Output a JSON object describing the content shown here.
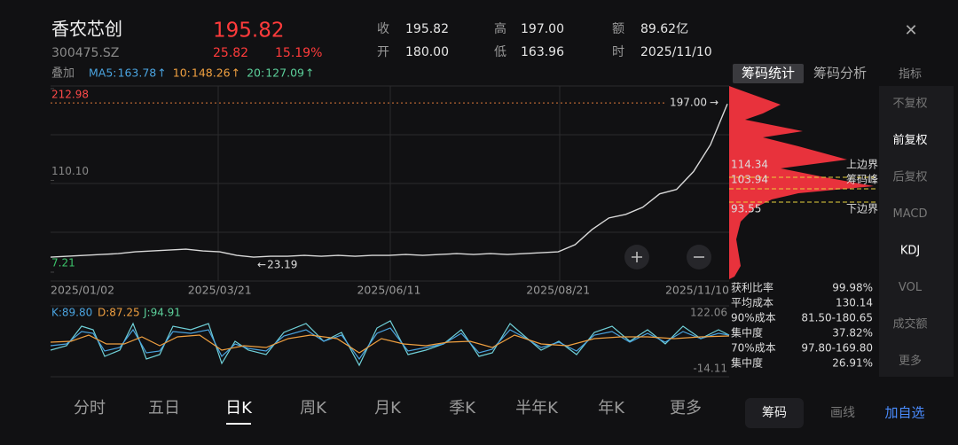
{
  "header": {
    "name": "香农芯创",
    "code": "300475.SZ",
    "price": "195.82",
    "change": "25.82",
    "change_pct": "15.19%",
    "stats": [
      {
        "label": "收",
        "value": "195.82"
      },
      {
        "label": "开",
        "value": "180.00"
      },
      {
        "label": "高",
        "value": "197.00"
      },
      {
        "label": "低",
        "value": "163.96"
      },
      {
        "label": "额",
        "value": "89.62亿"
      },
      {
        "label": "时",
        "value": "2025/11/10"
      }
    ],
    "close": "✕"
  },
  "overlay": {
    "label": "叠加",
    "ma": [
      {
        "name": "MA5:",
        "value": "163.78",
        "trend": "↑",
        "color": "#4aa3df"
      },
      {
        "name": "10:",
        "value": "148.26",
        "trend": "↑",
        "color": "#f0a040"
      },
      {
        "name": "20:",
        "value": "127.09",
        "trend": "↑",
        "color": "#5ccf9a"
      }
    ]
  },
  "chart_data": {
    "type": "line",
    "color": "#d9d9d9",
    "categories": [
      "2025/01/02",
      null,
      null,
      null,
      null,
      null,
      null,
      null,
      null,
      null,
      "2025/03/21",
      null,
      null,
      null,
      null,
      null,
      null,
      null,
      null,
      null,
      "2025/06/11",
      null,
      null,
      null,
      null,
      null,
      null,
      null,
      null,
      null,
      "2025/08/21",
      null,
      null,
      null,
      null,
      null,
      null,
      null,
      null,
      null,
      "2025/11/10"
    ],
    "values": [
      24,
      25,
      26,
      27,
      28,
      30,
      31,
      32,
      33,
      31,
      30,
      26,
      24,
      25,
      25,
      26,
      25,
      26,
      25,
      26,
      26,
      27,
      26,
      27,
      28,
      27,
      28,
      27,
      28,
      29,
      30,
      38,
      55,
      68,
      72,
      80,
      95,
      100,
      120,
      150,
      195.82
    ],
    "ylim": [
      7.21,
      212.98
    ],
    "yticks": [
      212.98,
      {
        "value": 110.1,
        "label": "110.10"
      },
      7.21
    ],
    "high_marker": {
      "value": 197,
      "label": "197.00",
      "arrow": "→"
    },
    "low_marker": {
      "value": 23.19,
      "arrow": "←"
    }
  },
  "chips": {
    "tabs": [
      "筹码统计",
      "筹码分析"
    ],
    "levels": [
      {
        "value": "114.34",
        "label": "上边界"
      },
      {
        "value": "103.94",
        "label": "筹码峰"
      },
      {
        "value": "93.55",
        "label": "下边界"
      }
    ],
    "stats": [
      {
        "label": "获利比率",
        "value": "99.98%"
      },
      {
        "label": "平均成本",
        "value": "130.14"
      },
      {
        "label": "90%成本",
        "value": "81.50-180.65"
      },
      {
        "label": "集中度",
        "value": "37.82%"
      },
      {
        "label": "70%成本",
        "value": "97.80-169.80"
      },
      {
        "label": "集中度",
        "value": "26.91%"
      }
    ]
  },
  "indicators": {
    "title": "指标",
    "items": [
      "不复权",
      "前复权",
      "后复权",
      "MACD",
      "KDJ",
      "VOL",
      "成交额",
      "更多"
    ],
    "active": [
      "前复权",
      "KDJ"
    ]
  },
  "kdj": {
    "k": "K:89.80",
    "d": "D:87.25",
    "j": "J:94.91",
    "max": "122.06",
    "min": "-14.11"
  },
  "period_tabs": {
    "items": [
      "分时",
      "五日",
      "日K",
      "周K",
      "月K",
      "季K",
      "半年K",
      "年K",
      "更多"
    ],
    "active": "日K"
  },
  "actions": {
    "chips": "筹码",
    "draw": "画线",
    "watch": "加自选"
  }
}
